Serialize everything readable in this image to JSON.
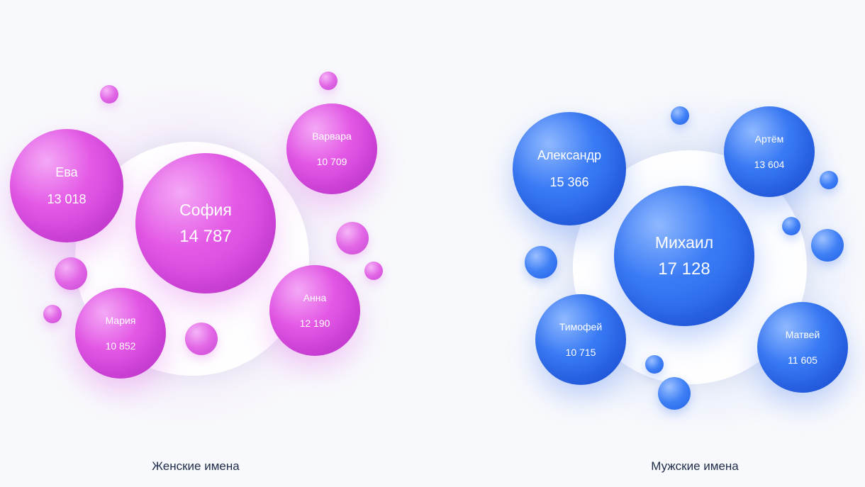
{
  "chart_data": [
    {
      "type": "bubble",
      "caption": "Женские имена",
      "points": [
        {
          "name": "София",
          "value": "14 787"
        },
        {
          "name": "Ева",
          "value": "13 018"
        },
        {
          "name": "Варвара",
          "value": "10 709"
        },
        {
          "name": "Анна",
          "value": "12 190"
        },
        {
          "name": "Мария",
          "value": "10 852"
        }
      ],
      "color": "#e45ae6"
    },
    {
      "type": "bubble",
      "caption": "Мужские имена",
      "points": [
        {
          "name": "Михаил",
          "value": "17 128"
        },
        {
          "name": "Александр",
          "value": "15 366"
        },
        {
          "name": "Артём",
          "value": "13 604"
        },
        {
          "name": "Тимофей",
          "value": "10 715"
        },
        {
          "name": "Матвей",
          "value": "11 605"
        }
      ],
      "color": "#2f6ff0"
    }
  ]
}
